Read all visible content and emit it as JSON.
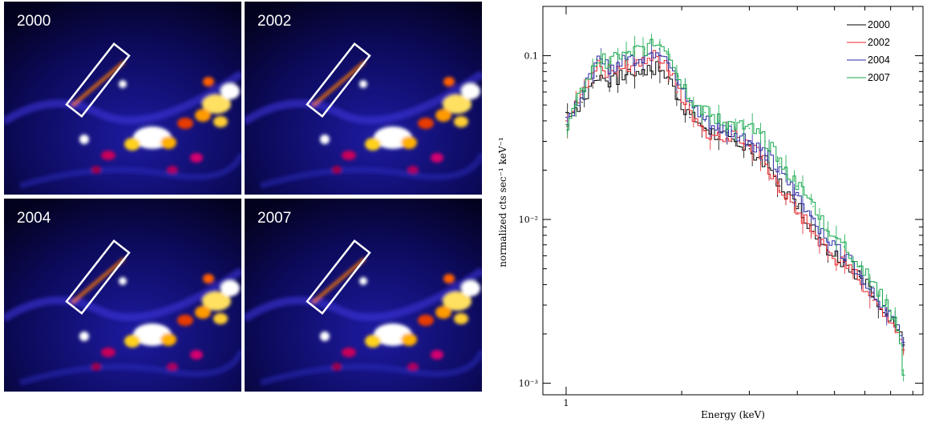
{
  "images": {
    "panels": [
      {
        "label": "2000"
      },
      {
        "label": "2002"
      },
      {
        "label": "2004"
      },
      {
        "label": "2007"
      }
    ]
  },
  "chart_data": {
    "type": "line",
    "xlabel": "Energy (keV)",
    "ylabel": "normalized cts sec⁻¹ keV⁻¹",
    "xscale": "log",
    "yscale": "log",
    "xlim": [
      0.87,
      8.5
    ],
    "ylim": [
      0.00085,
      0.2
    ],
    "x_ticks": [
      {
        "value": 1,
        "label": "1"
      }
    ],
    "y_ticks": [
      {
        "value": 0.1,
        "label": "0.1"
      },
      {
        "value": 0.01,
        "label": "10⁻²"
      },
      {
        "value": 0.001,
        "label": "10⁻³"
      }
    ],
    "legend_position": "top-right",
    "grid": false,
    "series": [
      {
        "name": "2000",
        "color": "#000000",
        "x": [
          1.0,
          1.1,
          1.2,
          1.3,
          1.45,
          1.6,
          1.75,
          1.85,
          1.95,
          2.1,
          2.3,
          2.5,
          2.7,
          3.0,
          3.3,
          3.6,
          4.0,
          4.4,
          4.8,
          5.3,
          5.8,
          6.3,
          6.8,
          7.2,
          7.5
        ],
        "y": [
          0.045,
          0.052,
          0.075,
          0.068,
          0.08,
          0.082,
          0.085,
          0.07,
          0.055,
          0.042,
          0.036,
          0.032,
          0.03,
          0.027,
          0.022,
          0.016,
          0.012,
          0.0085,
          0.0065,
          0.0055,
          0.0045,
          0.0034,
          0.0028,
          0.0022,
          0.0017
        ]
      },
      {
        "name": "2002",
        "color": "#e8262a",
        "x": [
          1.0,
          1.1,
          1.2,
          1.3,
          1.45,
          1.6,
          1.75,
          1.85,
          1.95,
          2.1,
          2.3,
          2.5,
          2.7,
          3.0,
          3.3,
          3.6,
          4.0,
          4.4,
          4.8,
          5.3,
          5.8,
          6.3,
          6.8,
          7.2,
          7.5
        ],
        "y": [
          0.04,
          0.058,
          0.085,
          0.078,
          0.088,
          0.095,
          0.1,
          0.082,
          0.06,
          0.045,
          0.035,
          0.031,
          0.033,
          0.028,
          0.022,
          0.015,
          0.011,
          0.0082,
          0.0062,
          0.0052,
          0.0043,
          0.0032,
          0.0026,
          0.0021,
          0.0016
        ]
      },
      {
        "name": "2004",
        "color": "#2a2aa6",
        "x": [
          1.0,
          1.1,
          1.2,
          1.3,
          1.45,
          1.6,
          1.75,
          1.85,
          1.95,
          2.1,
          2.3,
          2.5,
          2.7,
          3.0,
          3.3,
          3.6,
          4.0,
          4.4,
          4.8,
          5.3,
          5.8,
          6.3,
          6.8,
          7.2,
          7.5
        ],
        "y": [
          0.042,
          0.06,
          0.09,
          0.085,
          0.095,
          0.1,
          0.11,
          0.095,
          0.068,
          0.05,
          0.04,
          0.036,
          0.035,
          0.03,
          0.025,
          0.019,
          0.014,
          0.01,
          0.0075,
          0.006,
          0.0048,
          0.0036,
          0.0028,
          0.0022,
          0.0017
        ]
      },
      {
        "name": "2007",
        "color": "#12a84a",
        "x": [
          1.0,
          1.1,
          1.2,
          1.3,
          1.45,
          1.6,
          1.75,
          1.85,
          1.95,
          2.1,
          2.3,
          2.5,
          2.7,
          3.0,
          3.3,
          3.6,
          4.0,
          4.4,
          4.8,
          5.3,
          5.8,
          6.3,
          6.8,
          7.2,
          7.5
        ],
        "y": [
          0.038,
          0.062,
          0.095,
          0.092,
          0.105,
          0.11,
          0.12,
          0.105,
          0.075,
          0.055,
          0.045,
          0.04,
          0.038,
          0.036,
          0.03,
          0.022,
          0.016,
          0.012,
          0.0088,
          0.0068,
          0.0052,
          0.0039,
          0.003,
          0.0024,
          0.0012
        ]
      }
    ]
  }
}
